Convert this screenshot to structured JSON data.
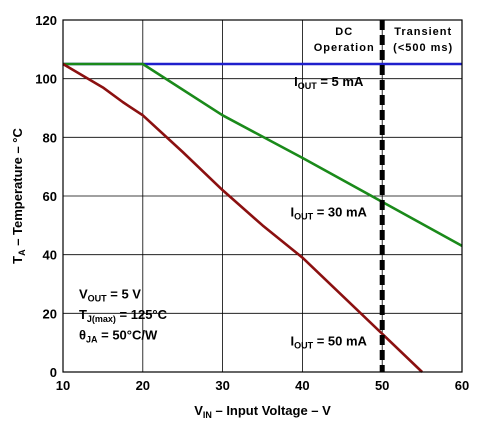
{
  "chart_data": {
    "type": "line",
    "xlabel": {
      "main": "V",
      "sub": "IN",
      "rest": " – Input Voltage – V"
    },
    "ylabel": {
      "main": "T",
      "sub": "A",
      "rest": " – Temperature – °C"
    },
    "xlim": [
      10,
      60
    ],
    "ylim": [
      0,
      120
    ],
    "x_ticks": [
      "10",
      "20",
      "30",
      "40",
      "50",
      "60"
    ],
    "y_ticks": [
      "0",
      "20",
      "40",
      "60",
      "80",
      "100",
      "120"
    ],
    "grid": true,
    "series": [
      {
        "name": "I_OUT = 5 mA",
        "color": "#1f1fcc",
        "x": [
          10,
          60
        ],
        "y": [
          105,
          105
        ]
      },
      {
        "name": "I_OUT = 30 mA",
        "color": "#1a8a1a",
        "x": [
          10,
          20,
          30,
          40,
          50,
          60
        ],
        "y": [
          105,
          105,
          87.5,
          73,
          58,
          43
        ]
      },
      {
        "name": "I_OUT = 50 mA",
        "color": "#8b1010",
        "x": [
          10,
          15,
          17.5,
          20,
          25,
          30,
          35,
          40,
          45,
          50,
          55
        ],
        "y": [
          105,
          97,
          92,
          87.5,
          75,
          62,
          50,
          39,
          26,
          13,
          0
        ]
      }
    ],
    "series_labels": [
      {
        "main": "I",
        "sub": "OUT",
        "rest": " = 5 mA"
      },
      {
        "main": "I",
        "sub": "OUT",
        "rest": " = 30 mA"
      },
      {
        "main": "I",
        "sub": "OUT",
        "rest": " = 50 mA"
      }
    ],
    "boundary": {
      "x": 50
    },
    "regions": {
      "left": [
        "DC",
        "Operation"
      ],
      "right": [
        "Transient",
        "(<500 ms)"
      ]
    },
    "conditions": [
      {
        "main": "V",
        "sub": "OUT",
        "rest": " = 5 V"
      },
      {
        "main": "T",
        "sub": "J(max)",
        "rest": " = 125°C"
      },
      {
        "main": "θ",
        "sub": "JA",
        "rest": " = 50°C/W"
      }
    ]
  }
}
